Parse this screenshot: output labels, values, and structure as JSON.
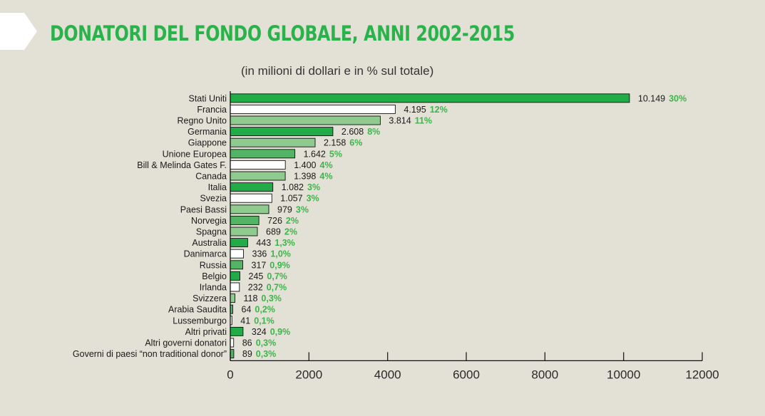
{
  "title": "DONATORI DEL FONDO GLOBALE, ANNI 2002-2015",
  "subtitle": "(in milioni di dollari e in % sul totale)",
  "colors": {
    "background": "#e3e1d6",
    "title": "#2ab34b",
    "percent_label": "#3cb54a",
    "fill_dark": "#22ac48",
    "fill_mid": "#52b464",
    "fill_light": "#8fcb8f",
    "fill_white": "#ffffff"
  },
  "chart_data": {
    "type": "bar",
    "orientation": "horizontal",
    "title": "DONATORI DEL FONDO GLOBALE, ANNI 2002-2015",
    "subtitle": "(in milioni di dollari e in % sul totale)",
    "xlim": [
      0,
      12000
    ],
    "x_ticks": [
      0,
      2000,
      4000,
      6000,
      8000,
      10000,
      12000
    ],
    "grid": false,
    "legend": "none",
    "categories": [
      "Stati Uniti",
      "Francia",
      "Regno Unito",
      "Germania",
      "Giappone",
      "Unione Europea",
      "Bill & Melinda Gates F.",
      "Canada",
      "Italia",
      "Svezia",
      "Paesi Bassi",
      "Norvegia",
      "Spagna",
      "Australia",
      "Danimarca",
      "Russia",
      "Belgio",
      "Irlanda",
      "Svizzera",
      "Arabia Saudita",
      "Lussemburgo",
      "Altri privati",
      "Altri governi donatori",
      "Governi di paesi “non traditional donor”"
    ],
    "values": [
      10149,
      4195,
      3814,
      2608,
      2158,
      1642,
      1400,
      1398,
      1082,
      1057,
      979,
      726,
      689,
      443,
      336,
      317,
      245,
      232,
      118,
      64,
      41,
      324,
      86,
      89
    ],
    "value_labels": [
      "10.149",
      "4.195",
      "3.814",
      "2.608",
      "2.158",
      "1.642",
      "1.400",
      "1.398",
      "1.082",
      "1.057",
      "979",
      "726",
      "689",
      "443",
      "336",
      "317",
      "245",
      "232",
      "118",
      "64",
      "41",
      "324",
      "86",
      "89"
    ],
    "percent_labels": [
      "30%",
      "12%",
      "11%",
      "8%",
      "6%",
      "5%",
      "4%",
      "4%",
      "3%",
      "3%",
      "3%",
      "2%",
      "2%",
      "1,3%",
      "1,0%",
      "0,9%",
      "0,7%",
      "0,7%",
      "0,3%",
      "0,2%",
      "0,1%",
      "0,9%",
      "0,3%",
      "0,3%"
    ],
    "bar_colors": [
      "#22ac48",
      "#ffffff",
      "#8fcb8f",
      "#22ac48",
      "#8fcb8f",
      "#52b464",
      "#ffffff",
      "#8fcb8f",
      "#22ac48",
      "#ffffff",
      "#8fcb8f",
      "#52b464",
      "#8fcb8f",
      "#22ac48",
      "#ffffff",
      "#52b464",
      "#22ac48",
      "#ffffff",
      "#8fcb8f",
      "#52b464",
      "#ffffff",
      "#22ac48",
      "#ffffff",
      "#52b464"
    ]
  }
}
